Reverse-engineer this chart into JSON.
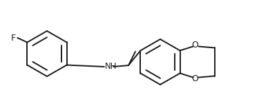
{
  "background_color": "#ffffff",
  "line_color": "#1a1a1a",
  "text_color": "#1a1a1a",
  "line_width": 1.4,
  "figsize": [
    3.75,
    1.57
  ],
  "dpi": 100,
  "F_label": "F",
  "NH_label": "NH",
  "O1_label": "O",
  "O2_label": "O"
}
